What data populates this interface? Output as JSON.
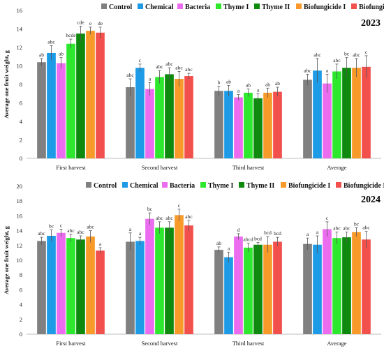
{
  "colors": [
    "#808080",
    "#1e9be6",
    "#ec6cf0",
    "#2ee82e",
    "#0f8a0f",
    "#f79a2a",
    "#f2504c"
  ],
  "chart_data": [
    {
      "type": "bar",
      "title": "2023",
      "ylabel": "Average one fruit weight, g",
      "ylim": [
        0,
        16
      ],
      "yticks": [
        "0",
        "2",
        "4",
        "6",
        "8",
        "10",
        "12",
        "14",
        "16"
      ],
      "legend": "top",
      "grid": false,
      "error_bars": true,
      "categories": [
        "First harvest",
        "Second harvest",
        "Third harvest",
        "Average"
      ],
      "series": [
        {
          "name": "Control",
          "values": [
            10.4,
            7.7,
            7.3,
            8.5
          ],
          "errors": [
            0.4,
            0.9,
            0.5,
            0.6
          ],
          "labels": [
            "ab",
            "abc",
            "b",
            "abc"
          ]
        },
        {
          "name": "Chemical",
          "values": [
            11.4,
            9.8,
            7.3,
            9.5
          ],
          "errors": [
            0.8,
            0.4,
            0.6,
            1.3
          ],
          "labels": [
            "abc",
            "c",
            "ab",
            "abc"
          ]
        },
        {
          "name": "Bacteria",
          "values": [
            10.3,
            7.5,
            6.6,
            8.1
          ],
          "errors": [
            0.6,
            0.7,
            0.3,
            1.0
          ],
          "labels": [
            "ab",
            "a",
            "a",
            "a"
          ]
        },
        {
          "name": "Thyme I",
          "values": [
            12.4,
            8.8,
            7.1,
            9.4
          ],
          "errors": [
            0.5,
            0.7,
            0.4,
            0.8
          ],
          "labels": [
            "bcde",
            "abc",
            "ab",
            "abc"
          ]
        },
        {
          "name": "Thyme II",
          "values": [
            13.5,
            9.1,
            6.5,
            9.8
          ],
          "errors": [
            0.8,
            0.7,
            0.5,
            1.1
          ],
          "labels": [
            "cde",
            "abc",
            "a",
            "bc"
          ]
        },
        {
          "name": "Biofungicide I",
          "values": [
            13.8,
            8.6,
            7.1,
            9.8
          ],
          "errors": [
            0.4,
            0.8,
            0.5,
            1.0
          ],
          "labels": [
            "e",
            "abc",
            "ab",
            "abc"
          ]
        },
        {
          "name": "Biofungicide II",
          "values": [
            13.6,
            8.9,
            7.2,
            9.9
          ],
          "errors": [
            0.6,
            0.3,
            0.5,
            1.2
          ],
          "labels": [
            "de",
            "abc",
            "ab",
            "c"
          ]
        }
      ]
    },
    {
      "type": "bar",
      "title": "2024",
      "ylabel": "Average one fruit weight, g",
      "ylim": [
        0,
        20
      ],
      "yticks": [
        "0",
        "2",
        "4",
        "6",
        "8",
        "10",
        "12",
        "14",
        "16",
        "18",
        "20"
      ],
      "legend": "top",
      "grid": false,
      "error_bars": true,
      "categories": [
        "First harvest",
        "Second harvest",
        "Third harvest",
        "Average"
      ],
      "series": [
        {
          "name": "Control",
          "values": [
            12.6,
            12.5,
            11.4,
            12.2
          ],
          "errors": [
            0.5,
            1.2,
            0.4,
            0.8
          ],
          "labels": [
            "abc",
            "a",
            "ab",
            "a"
          ]
        },
        {
          "name": "Chemical",
          "values": [
            13.3,
            12.6,
            10.4,
            12.1
          ],
          "errors": [
            0.8,
            0.5,
            0.7,
            1.2
          ],
          "labels": [
            "bc",
            "a",
            "a",
            "a"
          ]
        },
        {
          "name": "Bacteria",
          "values": [
            13.7,
            15.6,
            13.2,
            14.2
          ],
          "errors": [
            0.5,
            0.8,
            0.4,
            1.0
          ],
          "labels": [
            "c",
            "bc",
            "d",
            "c"
          ]
        },
        {
          "name": "Thyme I",
          "values": [
            13.0,
            14.4,
            11.7,
            13.0
          ],
          "errors": [
            0.5,
            0.8,
            0.6,
            0.8
          ],
          "labels": [
            "abc",
            "abc",
            "abcd",
            "abc"
          ]
        },
        {
          "name": "Thyme II",
          "values": [
            12.8,
            14.4,
            12.1,
            13.1
          ],
          "errors": [
            0.5,
            0.8,
            0.3,
            0.7
          ],
          "labels": [
            "abc",
            "abc",
            "bcd",
            "abc"
          ]
        },
        {
          "name": "Biofungicide I",
          "values": [
            13.2,
            16.1,
            12.1,
            13.8
          ],
          "errors": [
            0.8,
            0.8,
            1.1,
            0.6
          ],
          "labels": [
            "abc",
            "c",
            "bcd",
            "bc"
          ]
        },
        {
          "name": "Biofungicide II",
          "values": [
            11.3,
            14.7,
            12.5,
            12.8
          ],
          "errors": [
            0.4,
            0.7,
            0.6,
            1.1
          ],
          "labels": [
            "a",
            "abc",
            "bcd",
            "abc"
          ]
        }
      ]
    }
  ]
}
